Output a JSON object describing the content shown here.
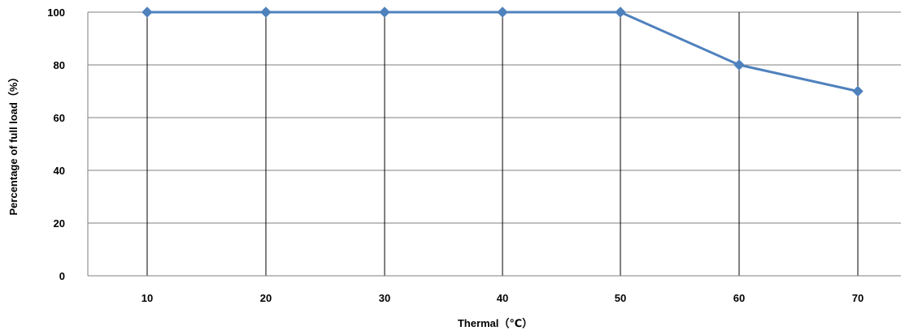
{
  "chart_data": {
    "type": "line",
    "title": "",
    "xlabel": "Thermal（℃）",
    "ylabel": "Percentage of full load（%）",
    "categories": [
      "10",
      "20",
      "30",
      "40",
      "50",
      "60",
      "70"
    ],
    "series": [
      {
        "values": [
          100,
          100,
          100,
          100,
          100,
          80,
          70
        ],
        "color": "#4F81BD",
        "marker": "diamond"
      }
    ],
    "ylim": [
      0,
      100
    ],
    "yticks": [
      "0",
      "20",
      "40",
      "60",
      "80",
      "100"
    ],
    "grid": "horizontal and vertical",
    "legend": "none",
    "colors": {
      "gridline": "#7f7f7f",
      "vertical_gridline": "#000000",
      "axis": "#7f7f7f",
      "series": "#4F81BD"
    }
  }
}
